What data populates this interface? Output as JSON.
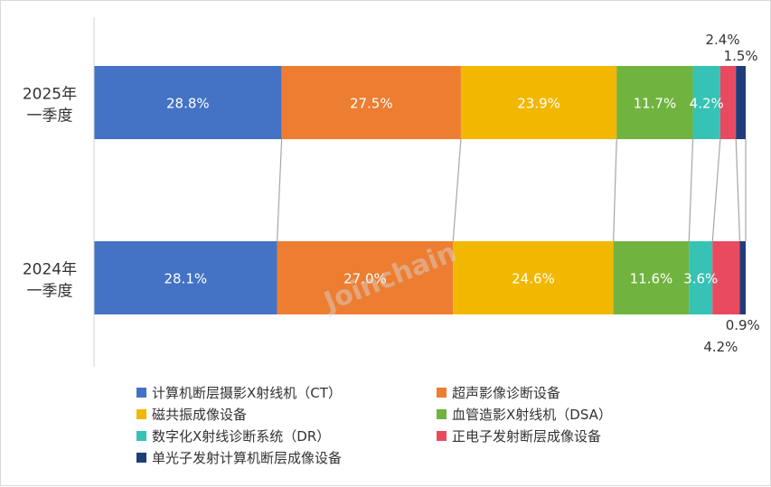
{
  "watermark": "Joinchain",
  "chart_data": {
    "type": "bar",
    "orientation": "horizontal",
    "stacked": "percent",
    "categories": [
      {
        "line1": "2025年",
        "line2": "一季度"
      },
      {
        "line1": "2024年",
        "line2": "一季度"
      }
    ],
    "series": [
      {
        "name": "计算机断层摄影X射线机（CT）",
        "color": "#4472c4",
        "values": [
          28.8,
          28.1
        ],
        "labels": [
          "28.8%",
          "28.1%"
        ]
      },
      {
        "name": "超声影像诊断设备",
        "color": "#ed7d31",
        "values": [
          27.5,
          27.0
        ],
        "labels": [
          "27.5%",
          "27.0%"
        ]
      },
      {
        "name": "磁共振成像设备",
        "color": "#f2b700",
        "values": [
          23.9,
          24.6
        ],
        "labels": [
          "23.9%",
          "24.6%"
        ]
      },
      {
        "name": "血管造影X射线机（DSA）",
        "color": "#70b33f",
        "values": [
          11.7,
          11.6
        ],
        "labels": [
          "11.7%",
          "11.6%"
        ]
      },
      {
        "name": "数字化X射线诊断系统（DR）",
        "color": "#36c2b4",
        "values": [
          4.2,
          3.6
        ],
        "labels": [
          "4.2%",
          "3.6%"
        ]
      },
      {
        "name": "正电子发射断层成像设备",
        "color": "#e84a5f",
        "values": [
          2.4,
          4.2
        ],
        "labels": [
          "2.4%",
          "4.2%"
        ]
      },
      {
        "name": "单光子发射计算机断层成像设备",
        "color": "#203d7a",
        "values": [
          1.5,
          0.9
        ],
        "labels": [
          "1.5%",
          "0.9%"
        ]
      }
    ],
    "xlim": [
      0,
      100
    ],
    "grid": false,
    "legend_position": "bottom"
  }
}
